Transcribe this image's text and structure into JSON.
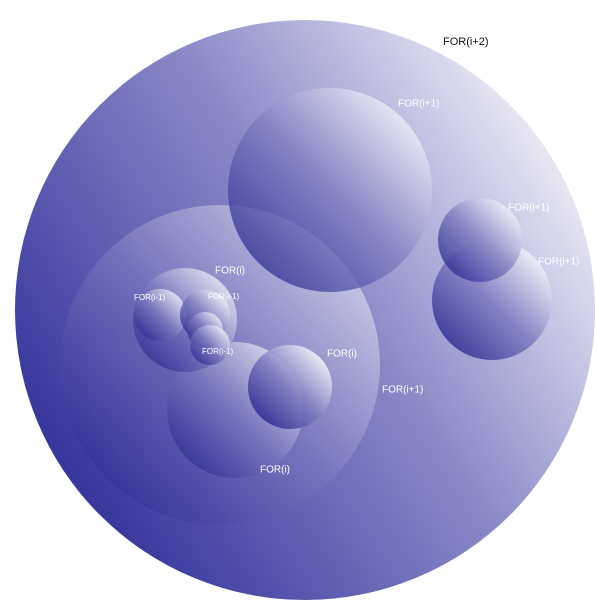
{
  "nodes": [
    {
      "label": "FOR(i+2)"
    },
    {
      "label": "FOR(i+1)"
    },
    {
      "label": "FOR(i+1)"
    },
    {
      "label": "FOR(i+1)"
    },
    {
      "label": "FOR(i+1)"
    },
    {
      "label": "FOR(i)"
    },
    {
      "label": "FOR(i)"
    },
    {
      "label": "FOR(i)"
    },
    {
      "label": "FOR(i-1)"
    },
    {
      "label": "FOR(i-1)"
    },
    {
      "label": "FOR(i-1)"
    }
  ]
}
